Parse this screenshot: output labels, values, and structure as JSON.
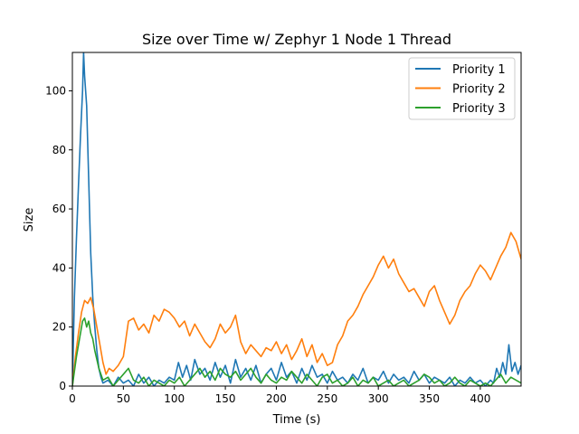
{
  "chart_data": {
    "type": "line",
    "title": "Size over Time w/ Zephyr 1 Node 1 Thread",
    "xlabel": "Time (s)",
    "ylabel": "Size",
    "xlim": [
      0,
      440
    ],
    "ylim": [
      0,
      113
    ],
    "xticks": [
      0,
      50,
      100,
      150,
      200,
      250,
      300,
      350,
      400
    ],
    "yticks": [
      0,
      20,
      40,
      60,
      80,
      100
    ],
    "grid": false,
    "legend_position": "top-right",
    "series": [
      {
        "name": "Priority 1",
        "color": "#1f77b4",
        "x": [
          0,
          2,
          4,
          6,
          8,
          10,
          11,
          12,
          14,
          16,
          18,
          20,
          22,
          24,
          26,
          28,
          30,
          35,
          40,
          45,
          50,
          55,
          60,
          65,
          70,
          75,
          80,
          85,
          90,
          95,
          100,
          104,
          108,
          112,
          116,
          120,
          125,
          130,
          135,
          140,
          145,
          150,
          155,
          160,
          165,
          170,
          175,
          180,
          185,
          190,
          195,
          200,
          205,
          210,
          215,
          220,
          225,
          230,
          235,
          240,
          245,
          250,
          255,
          260,
          265,
          270,
          275,
          280,
          285,
          290,
          295,
          300,
          305,
          310,
          315,
          320,
          325,
          330,
          335,
          340,
          345,
          350,
          355,
          360,
          365,
          370,
          375,
          380,
          385,
          390,
          395,
          400,
          405,
          410,
          413,
          416,
          419,
          422,
          425,
          428,
          431,
          434,
          437,
          440
        ],
        "y": [
          0,
          30,
          50,
          68,
          85,
          100,
          113,
          105,
          95,
          70,
          45,
          30,
          20,
          12,
          6,
          3,
          1,
          2,
          0,
          3,
          1,
          2,
          0,
          4,
          1,
          3,
          0,
          2,
          1,
          3,
          2,
          8,
          3,
          7,
          2,
          9,
          4,
          6,
          2,
          8,
          3,
          7,
          1,
          9,
          3,
          6,
          2,
          7,
          1,
          4,
          6,
          2,
          8,
          3,
          5,
          1,
          6,
          2,
          7,
          3,
          4,
          1,
          5,
          2,
          3,
          1,
          4,
          2,
          6,
          1,
          3,
          2,
          5,
          1,
          4,
          2,
          3,
          1,
          5,
          2,
          4,
          1,
          3,
          2,
          1,
          3,
          0,
          2,
          1,
          3,
          1,
          2,
          0,
          2,
          1,
          6,
          3,
          8,
          4,
          14,
          5,
          8,
          4,
          7
        ]
      },
      {
        "name": "Priority 2",
        "color": "#ff7f0e",
        "x": [
          0,
          3,
          6,
          9,
          12,
          15,
          18,
          21,
          24,
          27,
          30,
          33,
          36,
          40,
          45,
          50,
          55,
          60,
          65,
          70,
          75,
          80,
          85,
          90,
          95,
          100,
          105,
          110,
          115,
          120,
          125,
          130,
          135,
          140,
          145,
          150,
          155,
          160,
          165,
          170,
          175,
          180,
          185,
          190,
          195,
          200,
          205,
          210,
          215,
          220,
          225,
          230,
          235,
          240,
          245,
          250,
          255,
          260,
          265,
          270,
          275,
          280,
          285,
          290,
          295,
          300,
          305,
          310,
          315,
          320,
          325,
          330,
          335,
          340,
          345,
          350,
          355,
          360,
          365,
          370,
          375,
          380,
          385,
          390,
          395,
          400,
          405,
          410,
          415,
          420,
          425,
          430,
          435,
          440
        ],
        "y": [
          0,
          10,
          18,
          25,
          29,
          28,
          30,
          26,
          20,
          14,
          8,
          4,
          6,
          5,
          7,
          10,
          22,
          23,
          19,
          21,
          18,
          24,
          22,
          26,
          25,
          23,
          20,
          22,
          17,
          21,
          18,
          15,
          13,
          16,
          21,
          18,
          20,
          24,
          15,
          11,
          14,
          12,
          10,
          13,
          12,
          15,
          11,
          14,
          9,
          12,
          16,
          10,
          14,
          8,
          11,
          7,
          8,
          14,
          17,
          22,
          24,
          27,
          31,
          34,
          37,
          41,
          44,
          40,
          43,
          38,
          35,
          32,
          33,
          30,
          27,
          32,
          34,
          29,
          25,
          21,
          24,
          29,
          32,
          34,
          38,
          41,
          39,
          36,
          40,
          44,
          47,
          52,
          49,
          43
        ]
      },
      {
        "name": "Priority 3",
        "color": "#2ca02c",
        "x": [
          0,
          2,
          4,
          6,
          8,
          10,
          12,
          14,
          16,
          18,
          20,
          22,
          24,
          26,
          28,
          30,
          35,
          40,
          45,
          50,
          55,
          60,
          65,
          70,
          75,
          80,
          85,
          90,
          95,
          100,
          105,
          110,
          115,
          120,
          125,
          130,
          135,
          140,
          145,
          150,
          155,
          160,
          165,
          170,
          175,
          180,
          185,
          190,
          195,
          200,
          205,
          210,
          215,
          220,
          225,
          230,
          235,
          240,
          245,
          250,
          255,
          260,
          265,
          270,
          275,
          280,
          285,
          290,
          295,
          300,
          305,
          310,
          315,
          320,
          325,
          330,
          335,
          340,
          345,
          350,
          355,
          360,
          365,
          370,
          375,
          380,
          385,
          390,
          395,
          400,
          405,
          410,
          415,
          420,
          425,
          430,
          435,
          440
        ],
        "y": [
          0,
          5,
          10,
          14,
          18,
          22,
          23,
          20,
          22,
          18,
          16,
          12,
          9,
          6,
          4,
          2,
          3,
          0,
          2,
          4,
          6,
          2,
          1,
          3,
          0,
          2,
          1,
          0,
          2,
          1,
          3,
          0,
          2,
          4,
          6,
          3,
          5,
          2,
          6,
          4,
          3,
          5,
          2,
          4,
          6,
          3,
          1,
          4,
          2,
          1,
          3,
          2,
          5,
          3,
          1,
          4,
          2,
          0,
          3,
          4,
          1,
          2,
          0,
          1,
          3,
          0,
          2,
          1,
          3,
          0,
          1,
          2,
          0,
          1,
          2,
          0,
          1,
          2,
          4,
          3,
          1,
          2,
          0,
          1,
          3,
          1,
          0,
          2,
          1,
          0,
          1,
          0,
          2,
          4,
          1,
          3,
          2,
          1
        ]
      }
    ]
  }
}
